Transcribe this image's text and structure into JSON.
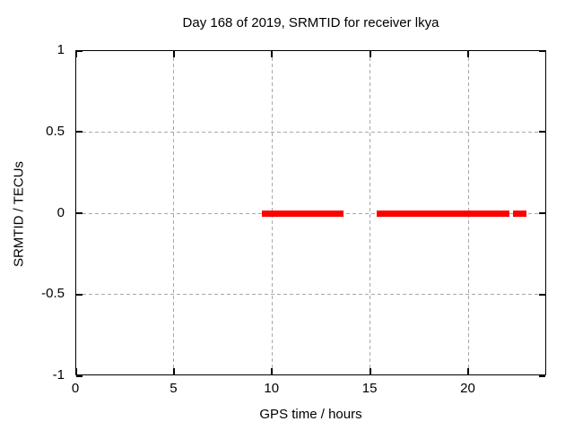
{
  "window": {
    "background": "#ffffff"
  },
  "chart_data": {
    "type": "line",
    "title": "Day 168 of 2019, SRMTID for receiver lkya",
    "xlabel": "GPS time / hours",
    "ylabel": "SRMTID / TECUs",
    "xlim": [
      0,
      24
    ],
    "ylim": [
      -1,
      1
    ],
    "x_ticks": [
      {
        "value": 0,
        "label": "0"
      },
      {
        "value": 5,
        "label": "5"
      },
      {
        "value": 10,
        "label": "10"
      },
      {
        "value": 15,
        "label": "15"
      },
      {
        "value": 20,
        "label": "20"
      }
    ],
    "y_ticks": [
      {
        "value": 1,
        "label": "1"
      },
      {
        "value": 0.5,
        "label": "0.5"
      },
      {
        "value": 0,
        "label": "0"
      },
      {
        "value": -0.5,
        "label": "-0.5"
      },
      {
        "value": -1,
        "label": "-1"
      }
    ],
    "grid": true,
    "legend": "none",
    "series": [
      {
        "name": "SRMTID",
        "color": "#ff0000",
        "style": "thick horizontal segments at constant y",
        "segments": [
          {
            "x_start": 9.45,
            "x_end": 13.62,
            "y": 0
          },
          {
            "x_start": 15.33,
            "x_end": 22.07,
            "y": 0
          },
          {
            "x_start": 22.25,
            "x_end": 22.95,
            "y": 0
          }
        ]
      }
    ],
    "colors": {
      "grid": "#a8a8a8",
      "border": "#000000",
      "data": "#ff0000",
      "text": "#000000"
    }
  }
}
